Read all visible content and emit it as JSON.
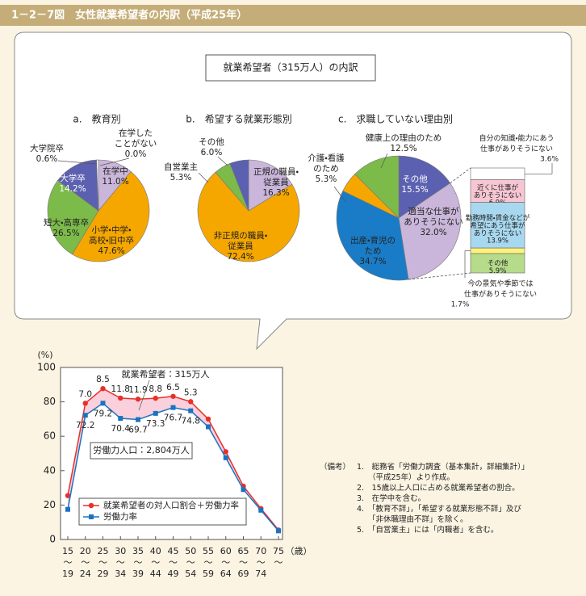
{
  "header": {
    "title": "1－2－7図　女性就業希望者の内訳（平成25年）"
  },
  "panel_title": "就業希望者（315万人）の内訳",
  "chart_data": [
    {
      "type": "pie",
      "title": "a.　教育別",
      "categories": [
        "在学した\nことがない",
        "在学中",
        "小学・中学・\n高校・旧中卒",
        "短大・高専卒",
        "大学卒",
        "大学院卒"
      ],
      "values": [
        0.0,
        11.0,
        47.6,
        26.5,
        14.2,
        0.6
      ],
      "value_labels": [
        "0.0%",
        "11.0%",
        "47.6%",
        "26.5%",
        "14.2%",
        "0.6%"
      ],
      "colors": [
        "#ffffff",
        "#c9b6da",
        "#f5a700",
        "#7cbb4a",
        "#5b60b0",
        "#ffffff"
      ]
    },
    {
      "type": "pie",
      "title": "b.　希望する就業形態別",
      "categories": [
        "正規の職員・\n従業員",
        "非正規の職員・\n従業員",
        "自営業主",
        "その他"
      ],
      "values": [
        16.3,
        72.4,
        5.3,
        6.0
      ],
      "value_labels": [
        "16.3%",
        "72.4%",
        "5.3%",
        "6.0%"
      ],
      "colors": [
        "#c9b6da",
        "#f5a700",
        "#7cbb4a",
        "#5b60b0"
      ]
    },
    {
      "type": "pie",
      "title": "c.　求職していない理由別",
      "categories": [
        "その他",
        "適当な仕事が\nありそうにない",
        "出産・育児の\nため",
        "介護・看護\nのため",
        "健康上の理由のため"
      ],
      "values": [
        15.5,
        32.0,
        34.7,
        5.3,
        12.5
      ],
      "value_labels": [
        "15.5%",
        "32.0%",
        "34.7%",
        "5.3%",
        "12.5%"
      ],
      "colors": [
        "#5b60b0",
        "#c9b6da",
        "#1a7cc6",
        "#f5a700",
        "#7cbb4a"
      ]
    },
    {
      "type": "stacked_bar",
      "series": [
        {
          "name": "自分の知識・能力にあう\n仕事がありそうにない",
          "color": "#ffffff",
          "values": [
            3.6
          ],
          "value_labels": [
            "3.6%"
          ]
        },
        {
          "name": "近くに仕事が\nありそうにない",
          "color": "#f7c6d3",
          "values": [
            6.9
          ],
          "value_labels": [
            "6.9%"
          ]
        },
        {
          "name": "勤務時間・賃金などが\n希望にあう仕事が\nありそうにない",
          "color": "#a8d8ef",
          "values": [
            13.9
          ],
          "value_labels": [
            "13.9%"
          ]
        },
        {
          "name": "今の景気や季節では\n仕事がありそうにない",
          "color": "#fff27a",
          "values": [
            1.7
          ],
          "value_labels": [
            "1.7%"
          ]
        },
        {
          "name": "その他",
          "color": "#b6db8b",
          "values": [
            5.9
          ],
          "value_labels": [
            "5.9%"
          ]
        }
      ]
    },
    {
      "type": "line",
      "ylabel": "(%)",
      "xlabel": "（歳）",
      "categories": [
        "15\n～\n19",
        "20\n～\n24",
        "25\n～\n29",
        "30\n～\n34",
        "35\n～\n39",
        "40\n～\n44",
        "45\n～\n49",
        "50\n～\n54",
        "55\n～\n59",
        "60\n～\n64",
        "65\n～\n69",
        "70\n～\n74",
        "75\n～"
      ],
      "ylim": [
        0,
        100
      ],
      "yticks": [
        0,
        20,
        40,
        60,
        80,
        100
      ],
      "series": [
        {
          "name": "就業希望者の対人口割合＋労働力率",
          "color": "#e8302a",
          "marker": "circle",
          "values": [
            25.5,
            79.2,
            87.7,
            82.2,
            81.6,
            82.1,
            83.2,
            80.1,
            70,
            51,
            31,
            18,
            5.5
          ]
        },
        {
          "name": "労働力率",
          "color": "#1b73c0",
          "marker": "square",
          "values": [
            17.5,
            72.2,
            79.2,
            70.4,
            69.7,
            73.3,
            76.7,
            74.8,
            65.5,
            47.5,
            29,
            17,
            5
          ],
          "value_labels": [
            null,
            "72.2",
            "79.2",
            "70.4",
            "69.7",
            "73.3",
            "76.7",
            "74.8",
            null,
            null,
            null,
            null,
            null
          ]
        }
      ],
      "difference_labels": [
        null,
        "7.0",
        "8.5",
        "11.8",
        "11.9",
        "8.8",
        "6.5",
        "5.3",
        null,
        null,
        null,
        null,
        null
      ],
      "fill_between_color": "#f9d0dc",
      "annotations": [
        "就業希望者：315万人",
        "労働力人口：2,804万人"
      ]
    }
  ],
  "notes": {
    "label": "（備考）",
    "items": [
      "1.　総務省「労働力調査（基本集計，詳細集計）」\n（平成25年）より作成。",
      "2.　15歳以上人口に占める就業希望者の割合。",
      "3.　在学中を含む。",
      "4.　「教育不詳」，「希望する就業形態不詳」及び\n「非休職理由不詳」を除く。",
      "5.　「自営業主」には「内職者」を含む。"
    ]
  }
}
